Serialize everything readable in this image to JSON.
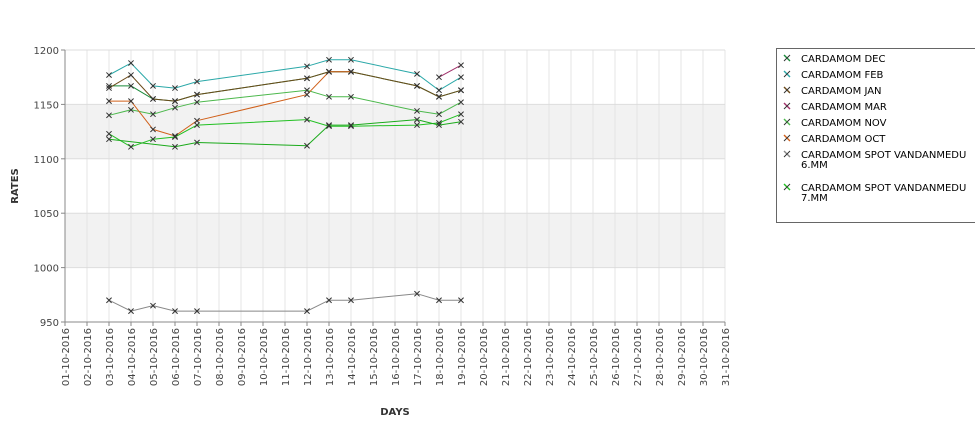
{
  "chart_data": {
    "type": "line",
    "title": "",
    "xlabel": "DAYS",
    "ylabel": "RATES",
    "ylim": [
      950,
      1200
    ],
    "yticks": [
      950,
      1000,
      1050,
      1100,
      1150,
      1200
    ],
    "x_categories": [
      "01-10-2016",
      "02-10-2016",
      "03-10-2016",
      "04-10-2016",
      "05-10-2016",
      "06-10-2016",
      "07-10-2016",
      "08-10-2016",
      "09-10-2016",
      "10-10-2016",
      "11-10-2016",
      "12-10-2016",
      "13-10-2016",
      "14-10-2016",
      "15-10-2016",
      "16-10-2016",
      "17-10-2016",
      "18-10-2016",
      "19-10-2016",
      "20-10-2016",
      "21-10-2016",
      "22-10-2016",
      "23-10-2016",
      "24-10-2016",
      "25-10-2016",
      "26-10-2016",
      "27-10-2016",
      "28-10-2016",
      "29-10-2016",
      "30-10-2016",
      "31-10-2016"
    ],
    "grid": true,
    "marker": "x",
    "legend_position": "right",
    "series": [
      {
        "name": "CARDAMOM DEC",
        "color": "#1a8a3a",
        "points": [
          [
            "03-10-2016",
            1167
          ],
          [
            "04-10-2016",
            1167
          ],
          [
            "05-10-2016",
            1155
          ],
          [
            "06-10-2016",
            1153
          ],
          [
            "07-10-2016",
            1159
          ],
          [
            "12-10-2016",
            1174
          ],
          [
            "13-10-2016",
            1180
          ],
          [
            "14-10-2016",
            1180
          ],
          [
            "17-10-2016",
            1167
          ],
          [
            "18-10-2016",
            1157
          ],
          [
            "19-10-2016",
            1163
          ]
        ]
      },
      {
        "name": "CARDAMOM FEB",
        "color": "#2aa8a8",
        "points": [
          [
            "03-10-2016",
            1177
          ],
          [
            "04-10-2016",
            1188
          ],
          [
            "05-10-2016",
            1167
          ],
          [
            "06-10-2016",
            1165
          ],
          [
            "07-10-2016",
            1171
          ],
          [
            "12-10-2016",
            1185
          ],
          [
            "13-10-2016",
            1191
          ],
          [
            "14-10-2016",
            1191
          ],
          [
            "17-10-2016",
            1178
          ],
          [
            "18-10-2016",
            1163
          ],
          [
            "19-10-2016",
            1175
          ]
        ]
      },
      {
        "name": "CARDAMOM JAN",
        "color": "#6b4a1a",
        "points": [
          [
            "03-10-2016",
            1165
          ],
          [
            "04-10-2016",
            1177
          ],
          [
            "05-10-2016",
            1155
          ],
          [
            "06-10-2016",
            1153
          ],
          [
            "07-10-2016",
            1159
          ],
          [
            "12-10-2016",
            1174
          ],
          [
            "13-10-2016",
            1180
          ],
          [
            "14-10-2016",
            1180
          ],
          [
            "17-10-2016",
            1167
          ],
          [
            "18-10-2016",
            1157
          ],
          [
            "19-10-2016",
            1163
          ]
        ]
      },
      {
        "name": "CARDAMOM MAR",
        "color": "#a0306a",
        "points": [
          [
            "18-10-2016",
            1175
          ],
          [
            "19-10-2016",
            1186
          ]
        ]
      },
      {
        "name": "CARDAMOM NOV",
        "color": "#4cb84c",
        "points": [
          [
            "03-10-2016",
            1140
          ],
          [
            "04-10-2016",
            1145
          ],
          [
            "05-10-2016",
            1141
          ],
          [
            "06-10-2016",
            1147
          ],
          [
            "07-10-2016",
            1152
          ],
          [
            "12-10-2016",
            1163
          ],
          [
            "13-10-2016",
            1157
          ],
          [
            "14-10-2016",
            1157
          ],
          [
            "17-10-2016",
            1144
          ],
          [
            "18-10-2016",
            1141
          ],
          [
            "19-10-2016",
            1152
          ]
        ]
      },
      {
        "name": "CARDAMOM OCT",
        "color": "#d0601a",
        "points": [
          [
            "03-10-2016",
            1153
          ],
          [
            "04-10-2016",
            1153
          ],
          [
            "05-10-2016",
            1127
          ],
          [
            "06-10-2016",
            1121
          ],
          [
            "07-10-2016",
            1135
          ],
          [
            "12-10-2016",
            1159
          ],
          [
            "13-10-2016",
            1180
          ],
          [
            "14-10-2016",
            1180
          ]
        ]
      },
      {
        "name": "CARDAMOM SPOT VANDANMEDU\n6.MM",
        "color": "#888888",
        "points": [
          [
            "03-10-2016",
            970
          ],
          [
            "04-10-2016",
            960
          ],
          [
            "05-10-2016",
            965
          ],
          [
            "06-10-2016",
            960
          ],
          [
            "07-10-2016",
            960
          ],
          [
            "12-10-2016",
            960
          ],
          [
            "13-10-2016",
            970
          ],
          [
            "14-10-2016",
            970
          ],
          [
            "17-10-2016",
            976
          ],
          [
            "18-10-2016",
            970
          ],
          [
            "19-10-2016",
            970
          ]
        ]
      },
      {
        "name": "CARDAMOM SPOT VANDANMEDU\n7.MM",
        "color": "#22c022",
        "points": [
          [
            "03-10-2016",
            1123
          ],
          [
            "04-10-2016",
            1111
          ],
          [
            "05-10-2016",
            1118
          ],
          [
            "06-10-2016",
            1120
          ],
          [
            "07-10-2016",
            1131
          ],
          [
            "12-10-2016",
            1136
          ],
          [
            "13-10-2016",
            1130
          ],
          [
            "14-10-2016",
            1130
          ],
          [
            "17-10-2016",
            1131
          ],
          [
            "18-10-2016",
            1133
          ],
          [
            "19-10-2016",
            1141
          ]
        ]
      },
      {
        "name": "",
        "color": "#1aaa1a",
        "points": [
          [
            "03-10-2016",
            1118
          ],
          [
            "06-10-2016",
            1111
          ],
          [
            "07-10-2016",
            1115
          ],
          [
            "12-10-2016",
            1112
          ],
          [
            "13-10-2016",
            1131
          ],
          [
            "14-10-2016",
            1131
          ],
          [
            "17-10-2016",
            1136
          ],
          [
            "18-10-2016",
            1131
          ],
          [
            "19-10-2016",
            1134
          ]
        ]
      }
    ]
  }
}
